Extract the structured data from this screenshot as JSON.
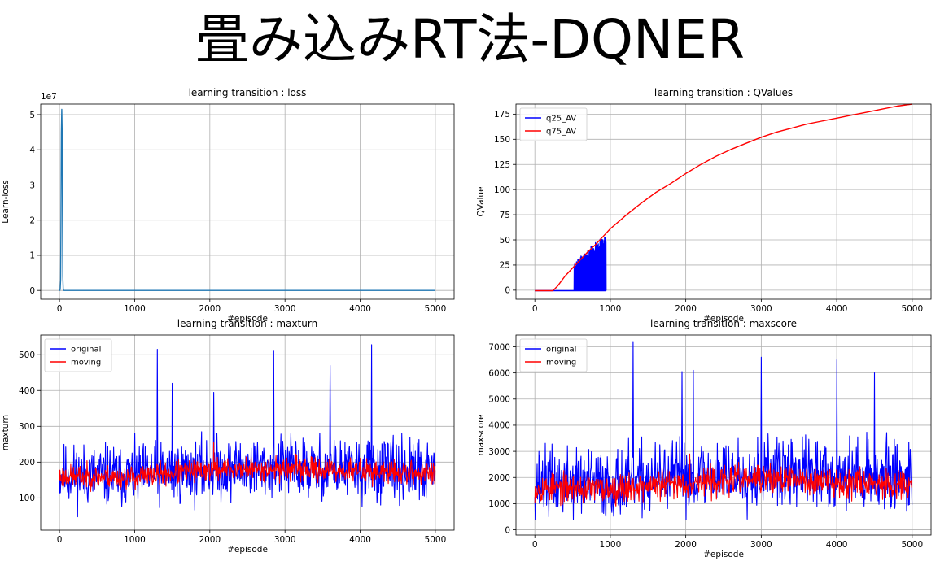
{
  "page": {
    "title": "畳み込みRT法-DQNER"
  },
  "colors": {
    "blue": "#0000ff",
    "red": "#ff0000",
    "loss_line": "#1f77b4",
    "grid": "#b0b0b0"
  },
  "chart_data": [
    {
      "type": "line",
      "title": "learning transition : loss",
      "xlabel": "#episode",
      "ylabel": "Learn-loss",
      "y_multiplier": "1e7",
      "xlim": [
        -250,
        5250
      ],
      "ylim": [
        -0.25,
        5.3
      ],
      "xticks": [
        0,
        1000,
        2000,
        3000,
        4000,
        5000
      ],
      "yticks": [
        0,
        1,
        2,
        3,
        4,
        5
      ],
      "grid": true,
      "series": [
        {
          "color": "#1f77b4",
          "x": [
            0,
            5,
            10,
            15,
            20,
            25,
            30,
            35,
            40,
            45,
            50,
            60,
            80,
            100,
            500,
            1000,
            2000,
            3000,
            4000,
            5000
          ],
          "y": [
            0.0,
            0.0,
            0.05,
            0.3,
            2.0,
            4.5,
            5.15,
            4.6,
            2.1,
            0.4,
            0.02,
            0.0,
            0.0,
            0.0,
            0.0,
            0.0,
            0.0,
            0.0,
            0.0,
            0.0
          ]
        }
      ]
    },
    {
      "type": "line",
      "title": "learning transition : QValues",
      "xlabel": "#episode",
      "ylabel": "QValue",
      "xlim": [
        -250,
        5250
      ],
      "ylim": [
        -9,
        185
      ],
      "xticks": [
        0,
        1000,
        2000,
        3000,
        4000,
        5000
      ],
      "yticks": [
        0,
        25,
        50,
        75,
        100,
        125,
        150,
        175
      ],
      "grid": true,
      "legend": "top-left",
      "series": [
        {
          "name": "q25_AV",
          "color": "#0000ff",
          "pattern": "q25"
        },
        {
          "name": "q75_AV",
          "color": "#ff0000",
          "x": [
            0,
            240,
            300,
            400,
            500,
            600,
            700,
            800,
            900,
            1000,
            1200,
            1400,
            1600,
            1800,
            2000,
            2200,
            2400,
            2600,
            2800,
            3000,
            3200,
            3400,
            3600,
            3800,
            4000,
            4200,
            4400,
            4600,
            4800,
            5000
          ],
          "y": [
            -0.5,
            -0.5,
            4,
            14,
            22,
            30,
            38,
            45,
            53,
            61,
            74,
            86,
            97,
            106,
            116,
            125,
            133,
            140,
            146,
            152,
            157,
            161,
            165,
            168,
            171,
            174,
            177,
            180,
            183,
            185
          ]
        }
      ]
    },
    {
      "type": "line",
      "title": "learning transition : maxturn",
      "xlabel": "#episode",
      "ylabel": "maxturn",
      "xlim": [
        -250,
        5250
      ],
      "ylim": [
        10,
        555
      ],
      "xticks": [
        0,
        1000,
        2000,
        3000,
        4000,
        5000
      ],
      "yticks": [
        100,
        200,
        300,
        400,
        500
      ],
      "grid": true,
      "legend": "top-left",
      "series": [
        {
          "name": "original",
          "color": "#0000ff",
          "pattern": "noise",
          "seed": 11,
          "mean": [
            [
              0,
              165
            ],
            [
              1000,
              160
            ],
            [
              2000,
              180
            ],
            [
              3000,
              185
            ],
            [
              4000,
              178
            ],
            [
              5000,
              170
            ]
          ],
          "spread": 85,
          "min": 35,
          "spikes": [
            [
              1300,
              515
            ],
            [
              2050,
              395
            ],
            [
              2850,
              510
            ],
            [
              4150,
              528
            ],
            [
              3600,
              470
            ],
            [
              1500,
              420
            ]
          ]
        },
        {
          "name": "moving",
          "color": "#ff0000",
          "pattern": "noise",
          "seed": 23,
          "mean": [
            [
              0,
              160
            ],
            [
              1000,
              158
            ],
            [
              2000,
              178
            ],
            [
              3000,
              182
            ],
            [
              4000,
              175
            ],
            [
              5000,
              168
            ]
          ],
          "spread": 32,
          "min": 100,
          "spikes": [
            [
              2050,
              255
            ]
          ]
        }
      ]
    },
    {
      "type": "line",
      "title": "learning transition : maxscore",
      "xlabel": "#episode",
      "ylabel": "maxscore",
      "xlim": [
        -250,
        5250
      ],
      "ylim": [
        -200,
        7450
      ],
      "xticks": [
        0,
        1000,
        2000,
        3000,
        4000,
        5000
      ],
      "yticks": [
        0,
        1000,
        2000,
        3000,
        4000,
        5000,
        6000,
        7000
      ],
      "grid": true,
      "legend": "top-left",
      "series": [
        {
          "name": "original",
          "color": "#0000ff",
          "pattern": "noise",
          "seed": 37,
          "mean": [
            [
              0,
              1850
            ],
            [
              1000,
              1750
            ],
            [
              2000,
              2050
            ],
            [
              3000,
              2200
            ],
            [
              4000,
              2150
            ],
            [
              5000,
              2000
            ]
          ],
          "spread": 1300,
          "min": 250,
          "spikes": [
            [
              1300,
              7200
            ],
            [
              2100,
              6100
            ],
            [
              3000,
              6600
            ],
            [
              4000,
              6500
            ],
            [
              1950,
              6050
            ],
            [
              4500,
              6000
            ]
          ]
        },
        {
          "name": "moving",
          "color": "#ff0000",
          "pattern": "noise",
          "seed": 53,
          "mean": [
            [
              0,
              1600
            ],
            [
              1000,
              1550
            ],
            [
              2000,
              1800
            ],
            [
              3000,
              1950
            ],
            [
              4000,
              1850
            ],
            [
              5000,
              1750
            ]
          ],
          "spread": 550,
          "min": 600,
          "spikes": [
            [
              2050,
              2900
            ]
          ]
        }
      ]
    }
  ]
}
